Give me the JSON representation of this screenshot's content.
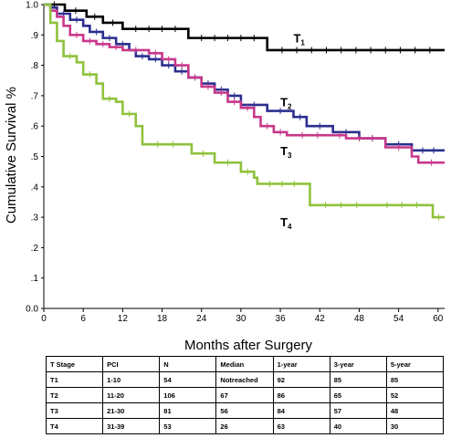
{
  "chart_data": {
    "type": "line",
    "xlabel": "Months after Surgery",
    "ylabel": "Cumulative Survival %",
    "xlim": [
      0,
      61
    ],
    "ylim": [
      0,
      1.0
    ],
    "xticks": [
      0,
      6,
      12,
      18,
      24,
      30,
      36,
      42,
      48,
      54,
      60
    ],
    "yticks": [
      {
        "value": 0.0,
        "label": "0.0"
      },
      {
        "value": 0.1,
        "label": ".1"
      },
      {
        "value": 0.2,
        "label": ".2"
      },
      {
        "value": 0.3,
        "label": ".3"
      },
      {
        "value": 0.4,
        "label": ".4"
      },
      {
        "value": 0.5,
        "label": ".5"
      },
      {
        "value": 0.6,
        "label": ".6"
      },
      {
        "value": 0.7,
        "label": ".7"
      },
      {
        "value": 0.8,
        "label": ".8"
      },
      {
        "value": 0.9,
        "label": ".9"
      },
      {
        "value": 1.0,
        "label": "1.0"
      }
    ],
    "grid": false,
    "series": [
      {
        "name": "T",
        "sub": "1",
        "color": "#000000",
        "label_at": [
          38,
          0.875
        ],
        "points": [
          [
            0,
            1.0
          ],
          [
            3.2,
            1.0
          ],
          [
            3.2,
            0.98
          ],
          [
            6.5,
            0.98
          ],
          [
            6.5,
            0.96
          ],
          [
            9,
            0.96
          ],
          [
            9,
            0.94
          ],
          [
            12,
            0.94
          ],
          [
            12,
            0.92
          ],
          [
            22,
            0.92
          ],
          [
            22,
            0.89
          ],
          [
            34,
            0.89
          ],
          [
            34,
            0.85
          ],
          [
            61,
            0.85
          ]
        ]
      },
      {
        "name": "T",
        "sub": "2",
        "color": "#2b2f8f",
        "label_at": [
          36,
          0.665
        ],
        "points": [
          [
            0,
            1.0
          ],
          [
            1,
            0.99
          ],
          [
            2,
            0.97
          ],
          [
            4,
            0.95
          ],
          [
            6,
            0.93
          ],
          [
            7,
            0.91
          ],
          [
            9,
            0.89
          ],
          [
            11,
            0.87
          ],
          [
            13,
            0.85
          ],
          [
            14,
            0.83
          ],
          [
            16,
            0.82
          ],
          [
            18,
            0.8
          ],
          [
            20,
            0.78
          ],
          [
            22,
            0.76
          ],
          [
            24,
            0.74
          ],
          [
            26,
            0.72
          ],
          [
            28,
            0.7
          ],
          [
            30,
            0.67
          ],
          [
            34,
            0.65
          ],
          [
            38,
            0.63
          ],
          [
            40,
            0.6
          ],
          [
            44,
            0.58
          ],
          [
            48,
            0.56
          ],
          [
            52,
            0.54
          ],
          [
            56,
            0.52
          ],
          [
            61,
            0.52
          ]
        ]
      },
      {
        "name": "T",
        "sub": "3",
        "color": "#c8388a",
        "label_at": [
          36,
          0.505
        ],
        "points": [
          [
            0,
            1.0
          ],
          [
            1,
            0.98
          ],
          [
            2,
            0.96
          ],
          [
            3,
            0.93
          ],
          [
            4,
            0.9
          ],
          [
            6,
            0.88
          ],
          [
            8,
            0.87
          ],
          [
            10,
            0.86
          ],
          [
            12,
            0.85
          ],
          [
            16,
            0.84
          ],
          [
            18,
            0.82
          ],
          [
            20,
            0.8
          ],
          [
            22,
            0.76
          ],
          [
            24,
            0.73
          ],
          [
            26,
            0.71
          ],
          [
            28,
            0.68
          ],
          [
            30,
            0.66
          ],
          [
            32,
            0.63
          ],
          [
            33,
            0.6
          ],
          [
            35,
            0.58
          ],
          [
            37,
            0.57
          ],
          [
            44,
            0.57
          ],
          [
            46,
            0.56
          ],
          [
            52,
            0.53
          ],
          [
            56,
            0.5
          ],
          [
            57,
            0.48
          ],
          [
            61,
            0.48
          ]
        ]
      },
      {
        "name": "T",
        "sub": "4",
        "color": "#8fc23c",
        "label_at": [
          36,
          0.27
        ],
        "points": [
          [
            0,
            1.0
          ],
          [
            1,
            0.94
          ],
          [
            2,
            0.88
          ],
          [
            3,
            0.83
          ],
          [
            5,
            0.81
          ],
          [
            6,
            0.77
          ],
          [
            8,
            0.74
          ],
          [
            9,
            0.69
          ],
          [
            11,
            0.68
          ],
          [
            12,
            0.64
          ],
          [
            14,
            0.6
          ],
          [
            15,
            0.54
          ],
          [
            22,
            0.54
          ],
          [
            22.5,
            0.51
          ],
          [
            26,
            0.48
          ],
          [
            30,
            0.45
          ],
          [
            32,
            0.43
          ],
          [
            32.5,
            0.41
          ],
          [
            40,
            0.41
          ],
          [
            40.5,
            0.34
          ],
          [
            50,
            0.34
          ],
          [
            59,
            0.34
          ],
          [
            59.2,
            0.3
          ],
          [
            61,
            0.3
          ]
        ]
      }
    ]
  },
  "table": {
    "headers": [
      "T Stage",
      "PCI",
      "N",
      "Median",
      "1-year",
      "3-year",
      "5-year"
    ],
    "rows": [
      [
        "T1",
        "1-10",
        "54",
        "Notreached",
        "92",
        "85",
        "85"
      ],
      [
        "T2",
        "11-20",
        "106",
        "67",
        "86",
        "65",
        "52"
      ],
      [
        "T3",
        "21-30",
        "81",
        "56",
        "84",
        "57",
        "48"
      ],
      [
        "T4",
        "31-39",
        "53",
        "26",
        "63",
        "40",
        "30"
      ]
    ]
  }
}
